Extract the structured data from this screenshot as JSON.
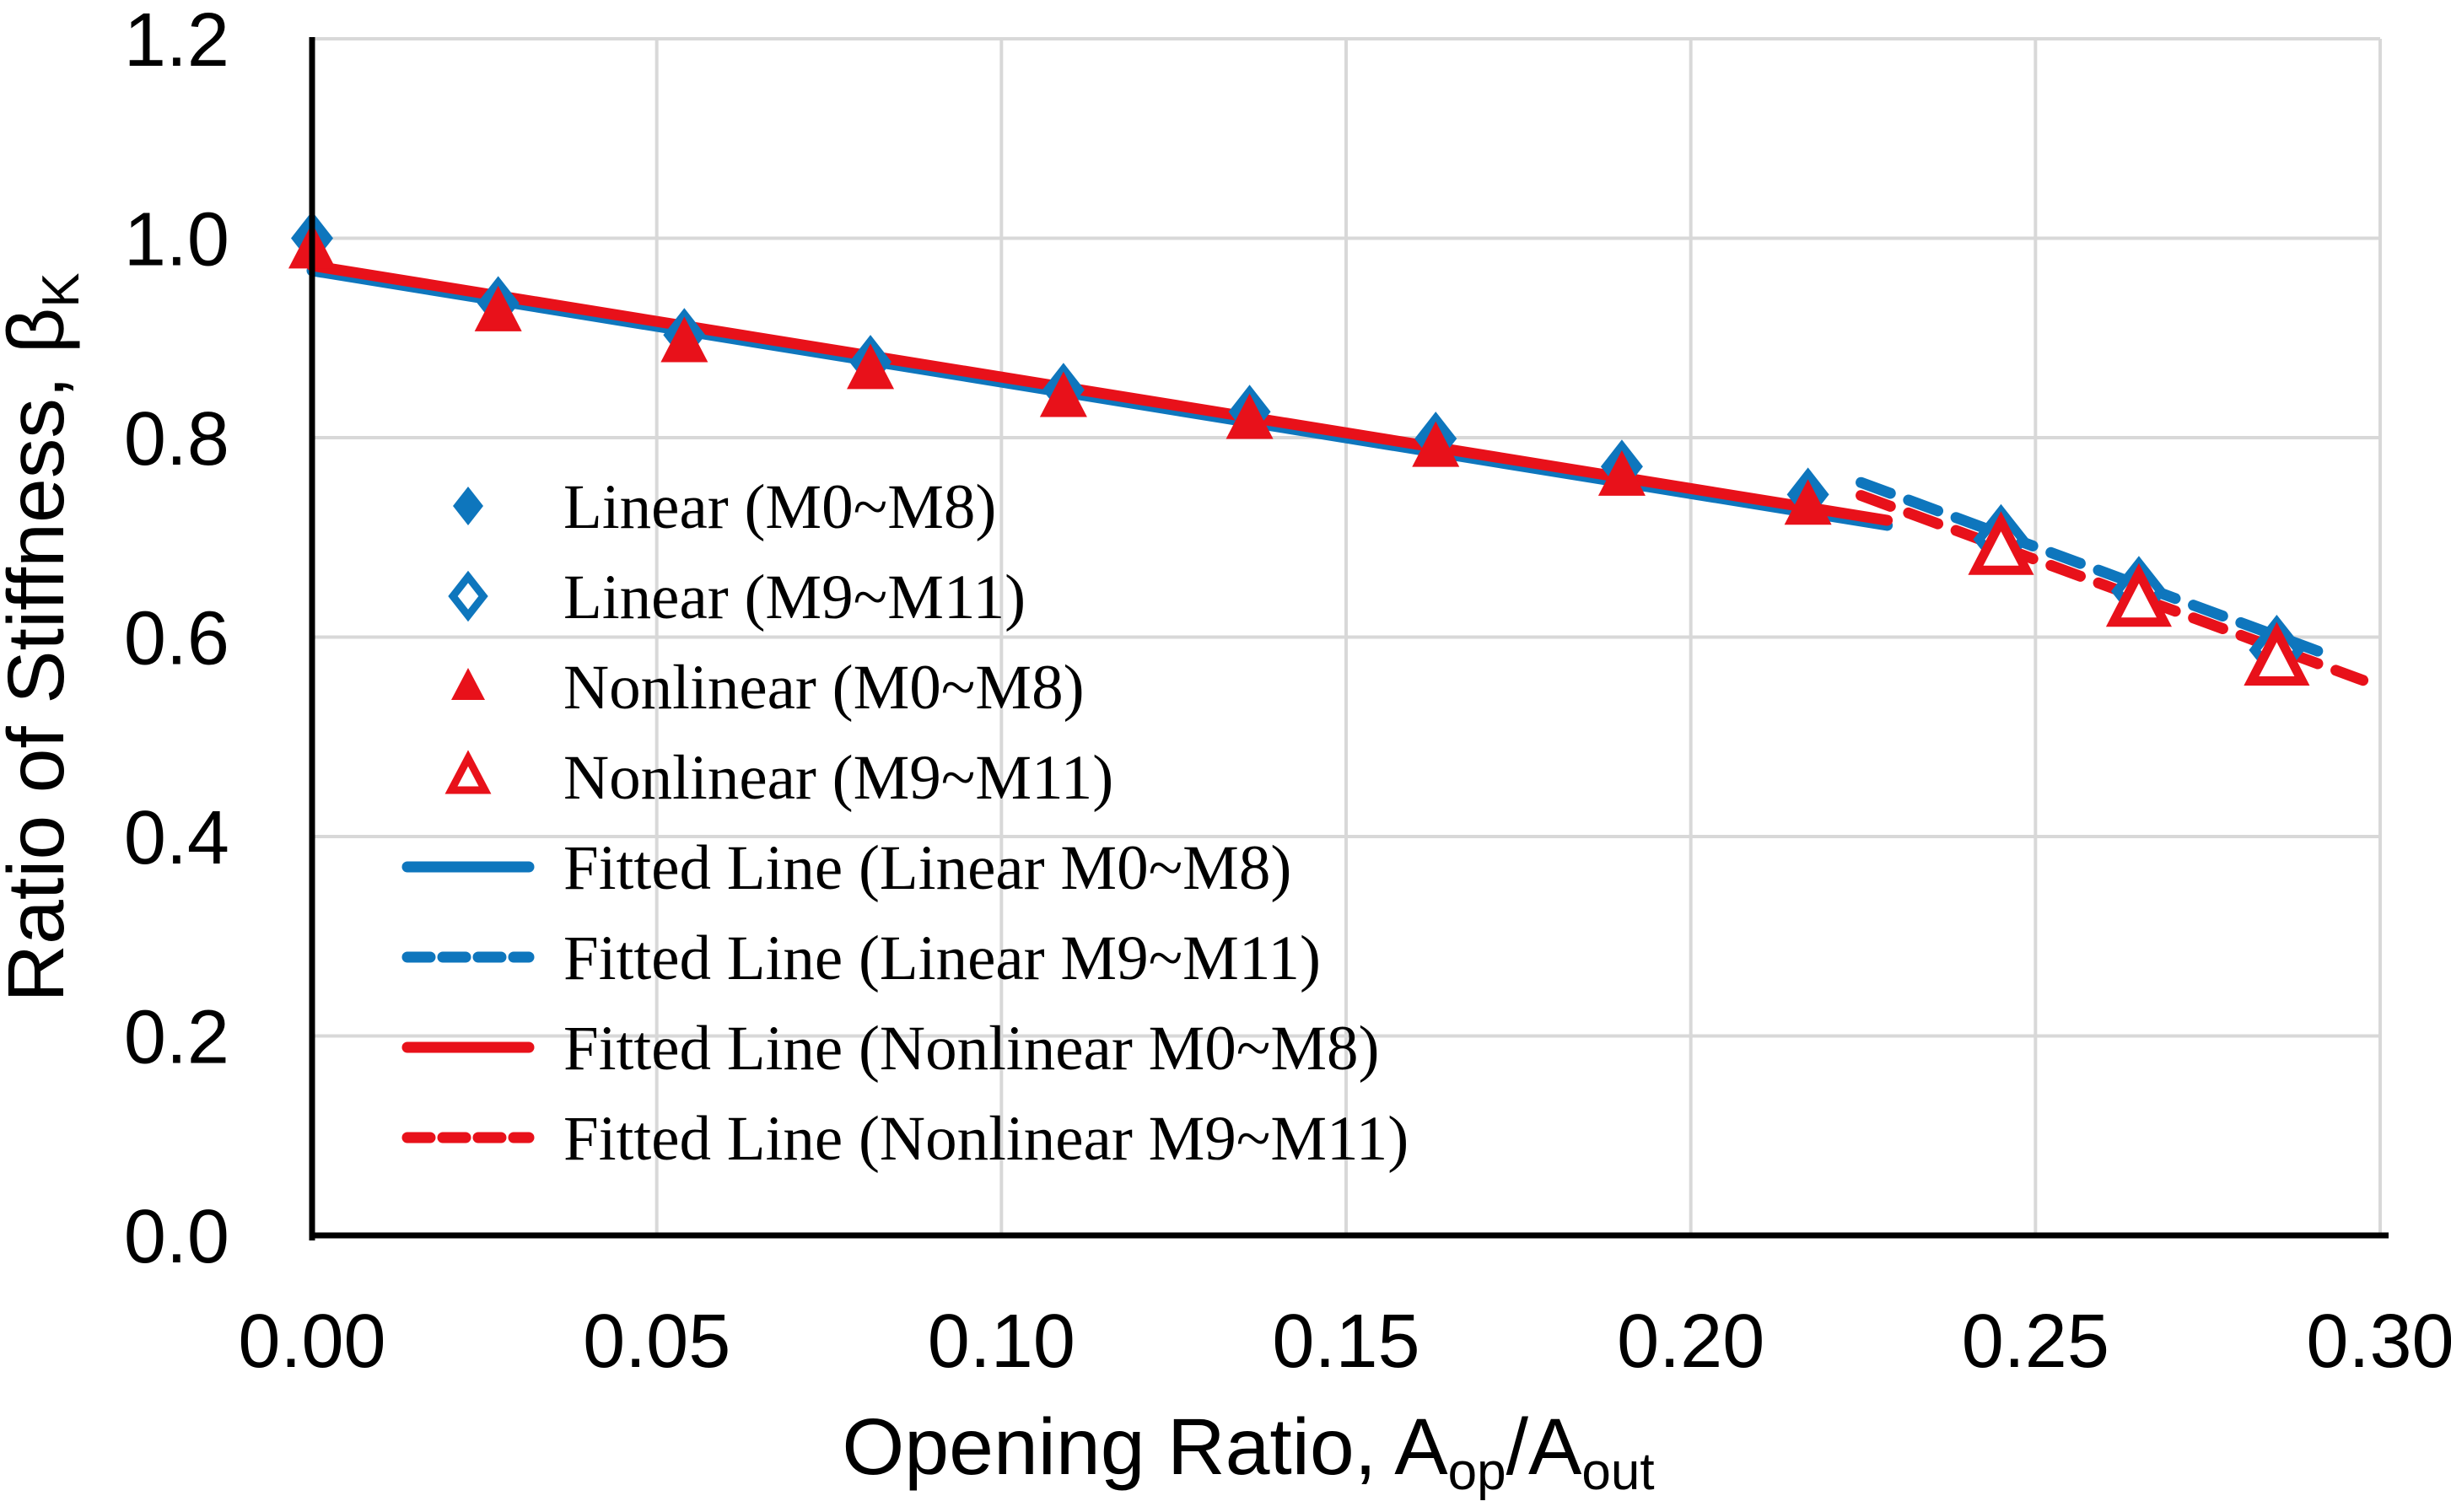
{
  "colors": {
    "blue": "#0e76bd",
    "red": "#e8111a",
    "grid": "#d8d8d8",
    "axis": "#000000",
    "text": "#000000",
    "background": "#ffffff"
  },
  "chart_data": {
    "type": "scatter",
    "title": "",
    "xlabel_parts": [
      {
        "t": "Opening Ratio, A",
        "sub": false
      },
      {
        "t": "op",
        "sub": true
      },
      {
        "t": "/A",
        "sub": false
      },
      {
        "t": "out",
        "sub": true
      }
    ],
    "ylabel_parts": [
      {
        "t": "Ratio of Stiffness, β",
        "sub": false
      },
      {
        "t": "K",
        "sub": true
      }
    ],
    "xlim": [
      0.0,
      0.3
    ],
    "ylim": [
      0.0,
      1.2
    ],
    "grid": true,
    "legend_position": "inside-left",
    "xticks": [
      {
        "v": 0.0,
        "label": "0.00"
      },
      {
        "v": 0.05,
        "label": "0.05"
      },
      {
        "v": 0.1,
        "label": "0.10"
      },
      {
        "v": 0.15,
        "label": "0.15"
      },
      {
        "v": 0.2,
        "label": "0.20"
      },
      {
        "v": 0.25,
        "label": "0.25"
      },
      {
        "v": 0.3,
        "label": "0.30"
      }
    ],
    "yticks": [
      {
        "v": 0.0,
        "label": "0.0"
      },
      {
        "v": 0.2,
        "label": "0.2"
      },
      {
        "v": 0.4,
        "label": "0.4"
      },
      {
        "v": 0.6,
        "label": "0.6"
      },
      {
        "v": 0.8,
        "label": "0.8"
      },
      {
        "v": 1.0,
        "label": "1.0"
      },
      {
        "v": 1.2,
        "label": "1.2"
      }
    ],
    "series": [
      {
        "name": "Linear (M0~M8)",
        "kind": "scatter",
        "marker": "diamond",
        "fill": "solid",
        "color": "blue",
        "points": [
          [
            0.0,
            1.0
          ],
          [
            0.027,
            0.935
          ],
          [
            0.054,
            0.903
          ],
          [
            0.081,
            0.876
          ],
          [
            0.109,
            0.848
          ],
          [
            0.136,
            0.826
          ],
          [
            0.163,
            0.799
          ],
          [
            0.19,
            0.771
          ],
          [
            0.217,
            0.743
          ]
        ]
      },
      {
        "name": "Linear (M9~M11)",
        "kind": "scatter",
        "marker": "diamond",
        "fill": "open",
        "color": "blue",
        "points": [
          [
            0.245,
            0.698
          ],
          [
            0.265,
            0.646
          ],
          [
            0.285,
            0.587
          ]
        ]
      },
      {
        "name": "Nonlinear (M0~M8)",
        "kind": "scatter",
        "marker": "triangle",
        "fill": "solid",
        "color": "red",
        "points": [
          [
            0.0,
            0.99
          ],
          [
            0.027,
            0.927
          ],
          [
            0.054,
            0.896
          ],
          [
            0.081,
            0.869
          ],
          [
            0.109,
            0.841
          ],
          [
            0.136,
            0.819
          ],
          [
            0.163,
            0.791
          ],
          [
            0.19,
            0.762
          ],
          [
            0.217,
            0.733
          ]
        ]
      },
      {
        "name": "Nonlinear (M9~M11)",
        "kind": "scatter",
        "marker": "triangle",
        "fill": "open",
        "color": "red",
        "points": [
          [
            0.245,
            0.689
          ],
          [
            0.265,
            0.637
          ],
          [
            0.285,
            0.578
          ]
        ]
      },
      {
        "name": "Fitted Line (Linear M0~M8)",
        "kind": "line",
        "style": "solid",
        "color": "blue",
        "from": [
          0.0,
          0.9675
        ],
        "to": [
          0.2285,
          0.7121
        ]
      },
      {
        "name": "Fitted Line (Linear M9~M11)",
        "kind": "line",
        "style": "dashed",
        "color": "blue",
        "from": [
          0.2247,
          0.755
        ],
        "to": [
          0.2925,
          0.582
        ]
      },
      {
        "name": "Fitted Line (Nonlinear M0~M8)",
        "kind": "line",
        "style": "solid",
        "color": "red",
        "from": [
          0.0,
          0.9725
        ],
        "to": [
          0.2285,
          0.7171
        ]
      },
      {
        "name": "Fitted Line (Nonlinear M9~M11)",
        "kind": "line",
        "style": "dashed",
        "color": "red",
        "from": [
          0.2247,
          0.742
        ],
        "to": [
          0.2975,
          0.5567
        ]
      }
    ]
  }
}
